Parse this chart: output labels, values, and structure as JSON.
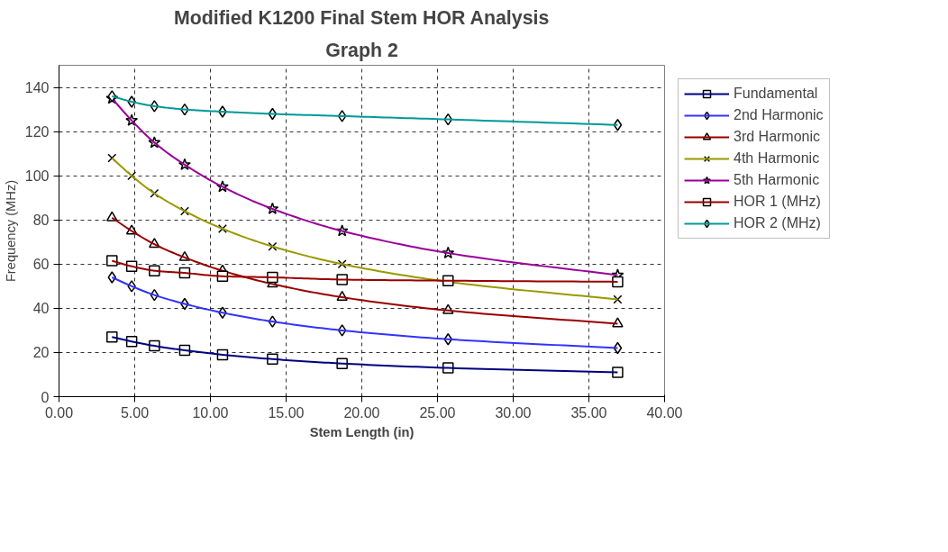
{
  "chart_data": {
    "type": "line",
    "title": "Modified K1200 Final Stem HOR Analysis",
    "subtitle": "Graph 2",
    "xlabel": "Stem Length (in)",
    "ylabel": "Frequency (MHz)",
    "x": [
      3.5,
      4.8,
      6.3,
      8.3,
      10.8,
      14.1,
      18.7,
      25.7,
      36.9
    ],
    "series": [
      {
        "name": "Fundamental",
        "color": "#000080",
        "marker": "square",
        "values": [
          27,
          25,
          23,
          21,
          19,
          17,
          15,
          13,
          11
        ]
      },
      {
        "name": "2nd Harmonic",
        "color": "#3333ff",
        "marker": "diamond",
        "values": [
          54,
          50,
          46,
          42,
          38,
          34,
          30,
          26,
          22
        ]
      },
      {
        "name": "3rd Harmonic",
        "color": "#990000",
        "marker": "triangle",
        "values": [
          81,
          75,
          69,
          63,
          57,
          51,
          45,
          39,
          33
        ]
      },
      {
        "name": "4th Harmonic",
        "color": "#999900",
        "marker": "cross",
        "values": [
          108,
          100,
          92,
          84,
          76,
          68,
          60,
          52,
          44
        ]
      },
      {
        "name": "5th Harmonic",
        "color": "#990099",
        "marker": "star",
        "values": [
          135,
          125,
          115,
          105,
          95,
          85,
          75,
          65,
          55
        ]
      },
      {
        "name": "HOR 1 (MHz)",
        "color": "#990000",
        "marker": "square",
        "values": [
          61.5,
          59,
          57,
          56,
          54.5,
          54,
          53,
          52.5,
          52
        ]
      },
      {
        "name": "HOR 2 (MHz)",
        "color": "#009999",
        "marker": "diamond",
        "values": [
          136,
          133.5,
          131.5,
          130,
          129,
          128,
          127,
          125.5,
          123
        ]
      }
    ],
    "xlim": [
      0,
      40
    ],
    "xticks": [
      {
        "value": 0,
        "label": "0.00"
      },
      {
        "value": 5,
        "label": "5.00"
      },
      {
        "value": 10,
        "label": "10.00"
      },
      {
        "value": 15,
        "label": "15.00"
      },
      {
        "value": 20,
        "label": "20.00"
      },
      {
        "value": 25,
        "label": "25.00"
      },
      {
        "value": 30,
        "label": "30.00"
      },
      {
        "value": 35,
        "label": "35.00"
      },
      {
        "value": 40,
        "label": "40.00"
      }
    ],
    "ylim": [
      0,
      150
    ],
    "yticks": [
      0,
      20,
      40,
      60,
      80,
      100,
      120,
      140
    ],
    "grid": true,
    "legend": "right",
    "line_style": "solid"
  }
}
